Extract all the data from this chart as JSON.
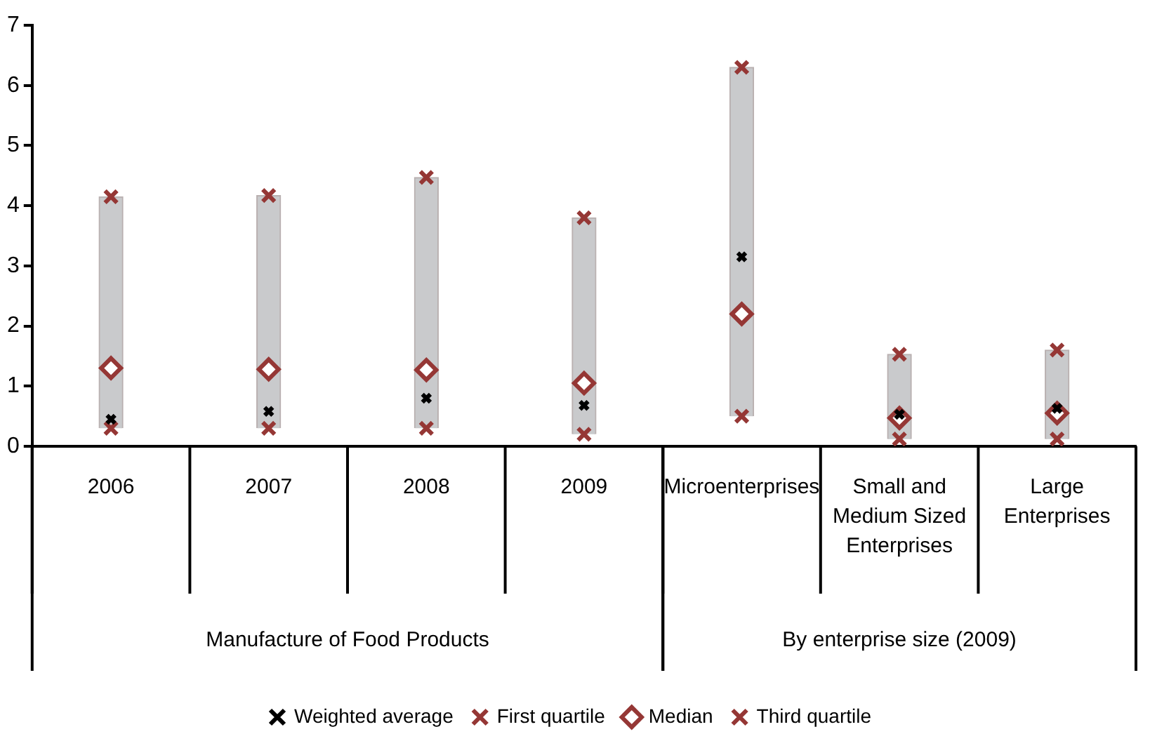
{
  "chart_data": {
    "type": "bar",
    "categories": [
      "2006",
      "2007",
      "2008",
      "2009",
      "Microenterprises",
      "Small and Medium Sized Enterprises",
      "Large Enterprises"
    ],
    "series": [
      {
        "color": "#c9cacc",
        "base": [
          0.3,
          0.3,
          0.3,
          0.2,
          0.5,
          0.12,
          0.12
        ],
        "values": [
          3.85,
          3.87,
          4.17,
          3.6,
          5.8,
          1.41,
          1.48
        ]
      },
      {
        "type": "scatter",
        "name": "First quartile",
        "color": "#953735",
        "marker": "cross",
        "values": [
          0.3,
          0.3,
          0.3,
          0.2,
          0.5,
          0.12,
          0.12
        ]
      },
      {
        "type": "scatter",
        "name": "Median",
        "color": "#953735",
        "marker": "diamond",
        "values": [
          1.3,
          1.28,
          1.27,
          1.05,
          2.2,
          0.47,
          0.55
        ]
      },
      {
        "type": "scatter",
        "name": "Third quartile",
        "color": "#953735",
        "marker": "cross",
        "values": [
          4.15,
          4.17,
          4.47,
          3.8,
          6.3,
          1.53,
          1.6
        ]
      },
      {
        "type": "scatter",
        "name": "Weighted average",
        "color": "#000000",
        "marker": "cross",
        "values": [
          0.45,
          0.58,
          0.8,
          0.68,
          3.15,
          0.53,
          0.63
        ]
      }
    ],
    "annotations": [
      "Manufacture of Food Products",
      "By enterprise size (2009)"
    ],
    "ylim": [
      0,
      7
    ],
    "yticks": [
      0,
      1,
      2,
      3,
      4,
      5,
      6,
      7
    ],
    "grid": false,
    "legend": "bottom"
  }
}
